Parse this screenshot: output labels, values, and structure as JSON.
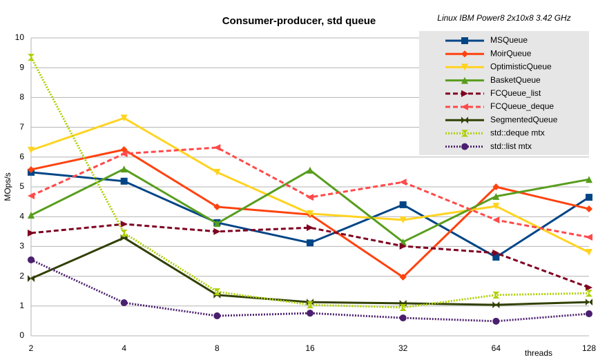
{
  "chart_data": {
    "type": "line",
    "title": "Consumer-producer, std queue",
    "annotation": "Linux IBM Power8 2x10x8 3.42 GHz",
    "y_label": "MOps/s",
    "x_label": "threads",
    "categories": [
      "2",
      "4",
      "8",
      "16",
      "32",
      "64",
      "128"
    ],
    "ylim": [
      0,
      10
    ],
    "yticks": [
      0,
      1,
      2,
      3,
      4,
      5,
      6,
      7,
      8,
      9,
      10
    ],
    "grid": true,
    "legend": "top-right",
    "series": [
      {
        "name": "MSQueue",
        "color": "#004586",
        "marker": "square",
        "dash": "solid",
        "values": [
          5.49,
          5.19,
          3.8,
          3.12,
          4.4,
          2.64,
          4.65
        ]
      },
      {
        "name": "MoirQueue",
        "color": "#ff420e",
        "marker": "diamond",
        "dash": "solid",
        "values": [
          5.58,
          6.25,
          4.33,
          4.07,
          1.97,
          5.0,
          4.26
        ]
      },
      {
        "name": "OptimisticQueue",
        "color": "#ffd320",
        "marker": "triangle-down",
        "dash": "solid",
        "values": [
          6.23,
          7.31,
          5.49,
          4.1,
          3.89,
          4.35,
          2.8
        ]
      },
      {
        "name": "BasketQueue",
        "color": "#579d1c",
        "marker": "triangle-up",
        "dash": "solid",
        "values": [
          4.05,
          5.6,
          3.77,
          5.56,
          3.15,
          4.68,
          5.25
        ]
      },
      {
        "name": "FCQueue_list",
        "color": "#7e0021",
        "marker": "triangle-right",
        "dash": "dashed",
        "values": [
          3.45,
          3.75,
          3.5,
          3.63,
          3.01,
          2.78,
          1.62
        ]
      },
      {
        "name": "FCQueue_deque",
        "color": "#ff4a4a",
        "marker": "triangle-left",
        "dash": "dashed",
        "values": [
          4.7,
          6.11,
          6.32,
          4.65,
          5.16,
          3.89,
          3.31
        ]
      },
      {
        "name": "SegmentedQueue",
        "color": "#314004",
        "marker": "bowtie",
        "dash": "solid",
        "values": [
          1.92,
          3.29,
          1.37,
          1.13,
          1.09,
          1.04,
          1.13
        ]
      },
      {
        "name": "std::deque mtx",
        "color": "#aecf00",
        "marker": "hourglass",
        "dash": "dotted",
        "values": [
          9.35,
          3.45,
          1.48,
          1.04,
          0.95,
          1.37,
          1.43
        ]
      },
      {
        "name": "std::list mtx",
        "color": "#4b1f6f",
        "marker": "circle",
        "dash": "dotted",
        "values": [
          2.55,
          1.11,
          0.67,
          0.76,
          0.6,
          0.49,
          0.74
        ]
      }
    ]
  }
}
